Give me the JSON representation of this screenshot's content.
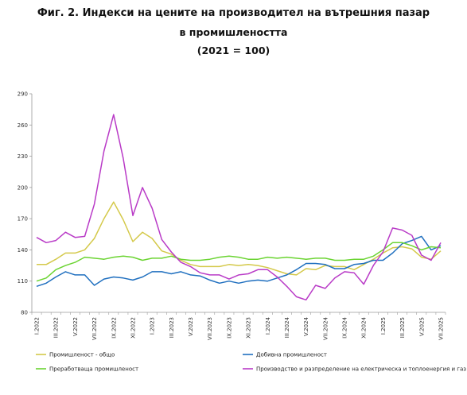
{
  "title_line1": "Фиг. 2. Индекси на цените на производител на вътрешния пазар",
  "title_line2": "в промишлеността",
  "title_line3": "(2021 = 100)",
  "chart_data": {
    "type": "line",
    "title": "Фиг. 2. Индекси на цените на производител на вътрешния пазар в промишлеността (2021 = 100)",
    "ylim": [
      80,
      290
    ],
    "yticks": [
      80,
      110,
      140,
      170,
      200,
      230,
      260,
      290
    ],
    "grid": false,
    "legend_position": "bottom",
    "x": [
      "I.2022",
      "II.2022",
      "III.2022",
      "IV.2022",
      "V.2022",
      "VI.2022",
      "VII.2022",
      "VIII.2022",
      "IX.2022",
      "X.2022",
      "XI.2022",
      "XII.2022",
      "I.2023",
      "II.2023",
      "III.2023",
      "IV.2023",
      "V.2023",
      "VI.2023",
      "VII.2023",
      "VIII.2023",
      "IX.2023",
      "X.2023",
      "XI.2023",
      "XII.2023",
      "I.2024",
      "II.2024",
      "III.2024",
      "IV.2024",
      "V.2024",
      "VI.2024",
      "VII.2024",
      "VIII.2024",
      "IX.2024",
      "X.2024",
      "XI.2024",
      "XII.2024",
      "I.2025",
      "II.2025",
      "III.2025",
      "IV.2025",
      "V.2025",
      "VI.2025",
      "VII.2025"
    ],
    "xtick_labels": [
      "I.2022",
      "III.2022",
      "V.2022",
      "VII.2022",
      "IX.2022",
      "XI.2022",
      "I.2023",
      "III.2023",
      "V.2023",
      "VII.2023",
      "IX.2023",
      "XI.2023",
      "I.2024",
      "III.2024",
      "V.2024",
      "VII.2024",
      "IX.2024",
      "XI.2024",
      "I.2025",
      "III.2025",
      "V.2025",
      "VII.2025"
    ],
    "series": [
      {
        "name": "Промишленост - общо",
        "color": "#D4C94A",
        "values": [
          126,
          126,
          131,
          137,
          137,
          140,
          151,
          170,
          186,
          169,
          148,
          157,
          151,
          139,
          136,
          130,
          126,
          124,
          124,
          124,
          126,
          125,
          126,
          125,
          123,
          120,
          117,
          116,
          122,
          121,
          125,
          124,
          124,
          121,
          126,
          131,
          137,
          142,
          143,
          141,
          133,
          131,
          139
        ]
      },
      {
        "name": "Добивна промишленост",
        "color": "#1F6FBF",
        "values": [
          105,
          108,
          114,
          119,
          116,
          116,
          106,
          112,
          114,
          113,
          111,
          114,
          119,
          119,
          117,
          119,
          116,
          115,
          111,
          108,
          110,
          108,
          110,
          111,
          110,
          113,
          116,
          121,
          127,
          127,
          126,
          122,
          122,
          126,
          127,
          130,
          130,
          137,
          146,
          149,
          153,
          140,
          144
        ]
      },
      {
        "name": "Преработваща промишленост",
        "color": "#6BD432",
        "values": [
          110,
          113,
          121,
          125,
          128,
          133,
          132,
          131,
          133,
          134,
          133,
          130,
          132,
          132,
          134,
          131,
          130,
          130,
          131,
          133,
          134,
          133,
          131,
          131,
          133,
          132,
          133,
          132,
          131,
          132,
          132,
          130,
          130,
          131,
          131,
          134,
          140,
          147,
          147,
          144,
          140,
          143,
          142
        ]
      },
      {
        "name": "Производство и разпределение на електрическа и топлоенергия и газ",
        "color": "#B93BC7",
        "values": [
          152,
          147,
          149,
          157,
          152,
          153,
          184,
          235,
          270,
          228,
          173,
          200,
          180,
          150,
          138,
          128,
          124,
          118,
          116,
          116,
          112,
          116,
          117,
          121,
          121,
          114,
          105,
          95,
          92,
          106,
          103,
          113,
          119,
          118,
          107,
          125,
          138,
          161,
          159,
          154,
          135,
          130,
          147
        ]
      }
    ]
  }
}
